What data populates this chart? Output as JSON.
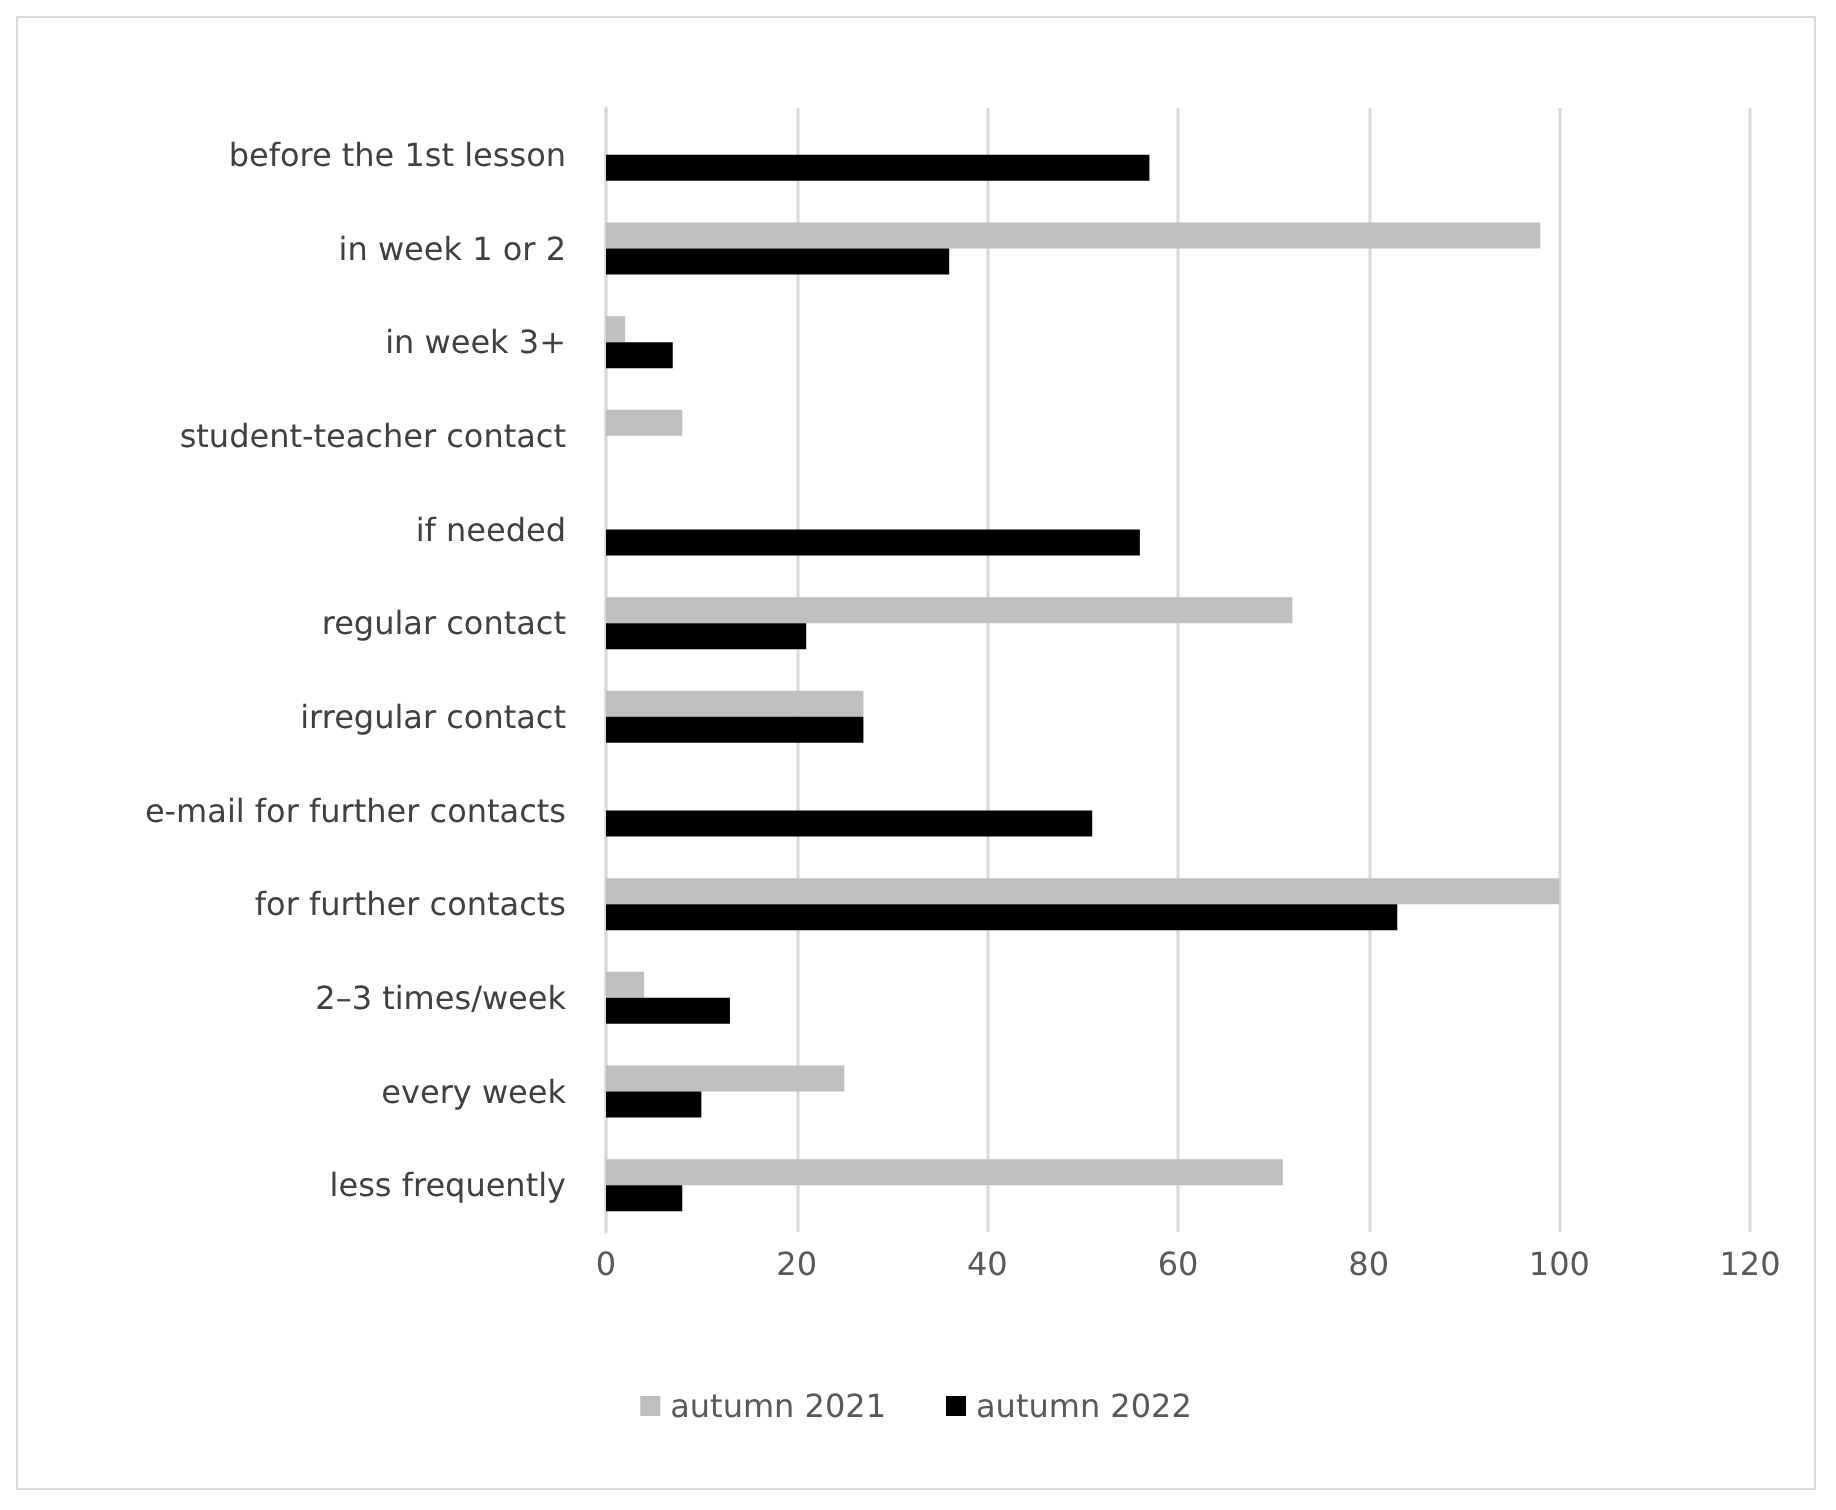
{
  "chart_data": {
    "type": "bar",
    "orientation": "horizontal",
    "categories": [
      "before the 1st lesson",
      "in week 1 or 2",
      "in week 3+",
      "student-teacher contact",
      "if needed",
      "regular contact",
      "irregular contact",
      "e-mail for further contacts",
      "for further contacts",
      "2–3 times/week",
      "every week",
      "less frequently"
    ],
    "series": [
      {
        "name": "autumn 2021",
        "color": "#bfbfbf",
        "values": [
          null,
          98,
          2,
          8,
          null,
          72,
          27,
          null,
          100,
          4,
          25,
          71
        ]
      },
      {
        "name": "autumn 2022",
        "color": "#000000",
        "values": [
          57,
          36,
          7,
          null,
          56,
          21,
          27,
          51,
          83,
          13,
          10,
          8
        ]
      }
    ],
    "xlim": [
      0,
      120
    ],
    "xticks": [
      0,
      20,
      40,
      60,
      80,
      100,
      120
    ],
    "grid": "x",
    "legend": "bottom"
  }
}
